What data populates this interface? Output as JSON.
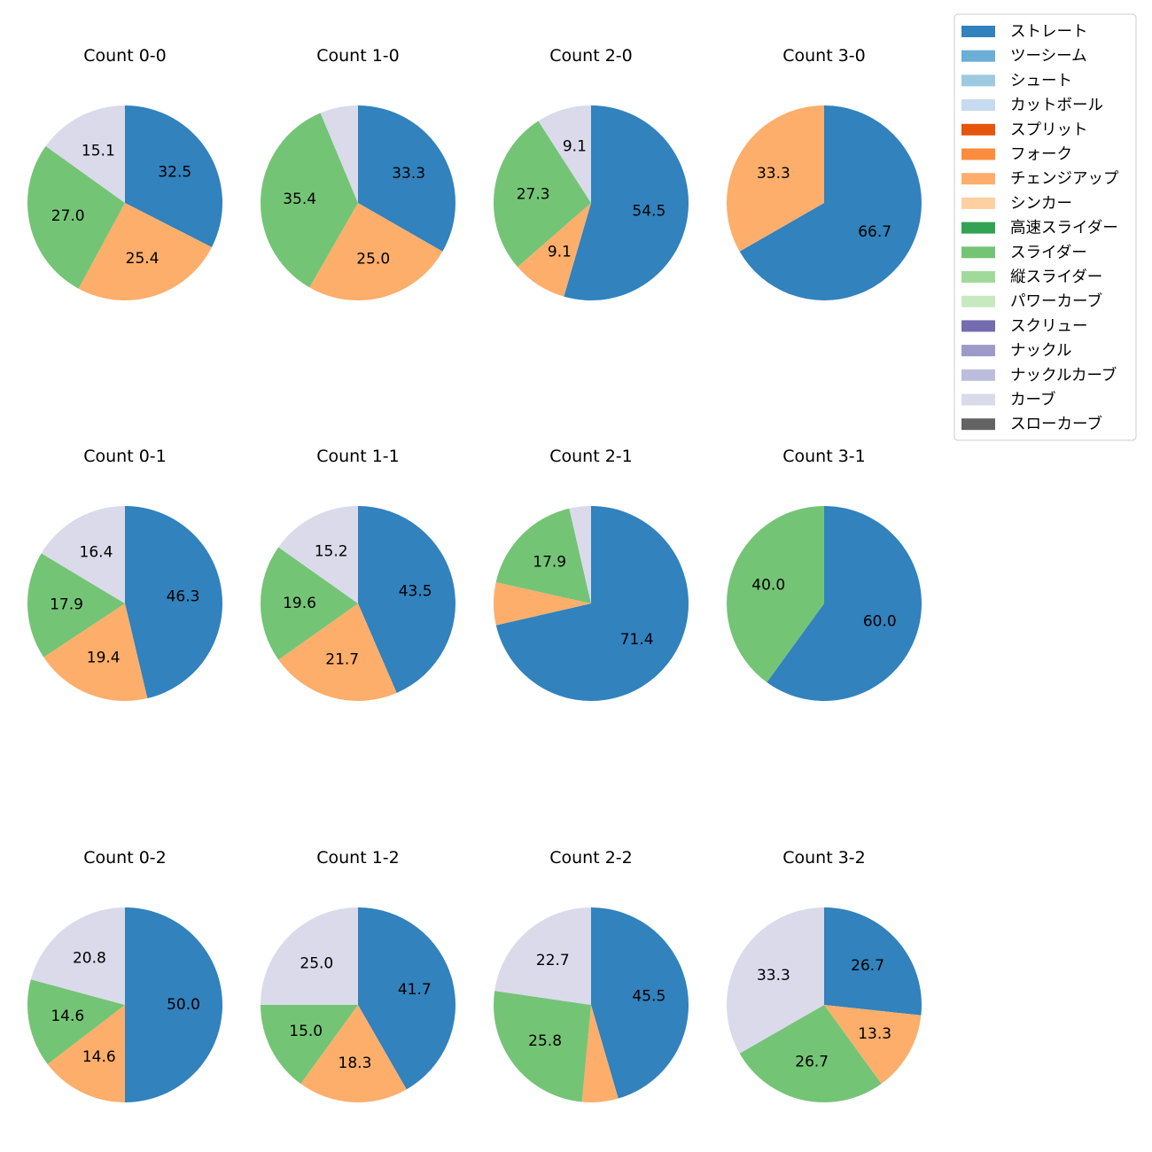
{
  "chart_data": {
    "type": "pie",
    "pitch_types": [
      {
        "name": "ストレート",
        "color": "#3182bd"
      },
      {
        "name": "ツーシーム",
        "color": "#6baed6"
      },
      {
        "name": "シュート",
        "color": "#9ecae1"
      },
      {
        "name": "カットボール",
        "color": "#c6dbef"
      },
      {
        "name": "スプリット",
        "color": "#e6550d"
      },
      {
        "name": "フォーク",
        "color": "#fd8d3c"
      },
      {
        "name": "チェンジアップ",
        "color": "#fdae6b"
      },
      {
        "name": "シンカー",
        "color": "#fdd0a2"
      },
      {
        "name": "高速スライダー",
        "color": "#31a354"
      },
      {
        "name": "スライダー",
        "color": "#74c476"
      },
      {
        "name": "縦スライダー",
        "color": "#a1d99b"
      },
      {
        "name": "パワーカーブ",
        "color": "#c7e9c0"
      },
      {
        "name": "スクリュー",
        "color": "#756bb1"
      },
      {
        "name": "ナックル",
        "color": "#9e9ac8"
      },
      {
        "name": "ナックルカーブ",
        "color": "#bcbddc"
      },
      {
        "name": "カーブ",
        "color": "#dadaeb"
      },
      {
        "name": "スローカーブ",
        "color": "#636363"
      }
    ],
    "legend_position": "top-right",
    "charts": [
      {
        "title": "Count 0-0",
        "slices": [
          {
            "type": "ストレート",
            "value": 32.5,
            "label": "32.5"
          },
          {
            "type": "チェンジアップ",
            "value": 25.4,
            "label": "25.4"
          },
          {
            "type": "スライダー",
            "value": 27.0,
            "label": "27.0"
          },
          {
            "type": "カーブ",
            "value": 15.1,
            "label": "15.1"
          }
        ]
      },
      {
        "title": "Count 1-0",
        "slices": [
          {
            "type": "ストレート",
            "value": 33.3,
            "label": "33.3"
          },
          {
            "type": "チェンジアップ",
            "value": 25.0,
            "label": "25.0"
          },
          {
            "type": "スライダー",
            "value": 35.4,
            "label": "35.4"
          },
          {
            "type": "カーブ",
            "value": 6.3,
            "label": ""
          }
        ]
      },
      {
        "title": "Count 2-0",
        "slices": [
          {
            "type": "ストレート",
            "value": 54.5,
            "label": "54.5"
          },
          {
            "type": "チェンジアップ",
            "value": 9.1,
            "label": "9.1"
          },
          {
            "type": "スライダー",
            "value": 27.3,
            "label": "27.3"
          },
          {
            "type": "カーブ",
            "value": 9.1,
            "label": "9.1"
          }
        ]
      },
      {
        "title": "Count 3-0",
        "slices": [
          {
            "type": "ストレート",
            "value": 66.7,
            "label": "66.7"
          },
          {
            "type": "チェンジアップ",
            "value": 33.3,
            "label": "33.3"
          }
        ]
      },
      {
        "title": "Count 0-1",
        "slices": [
          {
            "type": "ストレート",
            "value": 46.3,
            "label": "46.3"
          },
          {
            "type": "チェンジアップ",
            "value": 19.4,
            "label": "19.4"
          },
          {
            "type": "スライダー",
            "value": 17.9,
            "label": "17.9"
          },
          {
            "type": "カーブ",
            "value": 16.4,
            "label": "16.4"
          }
        ]
      },
      {
        "title": "Count 1-1",
        "slices": [
          {
            "type": "ストレート",
            "value": 43.5,
            "label": "43.5"
          },
          {
            "type": "チェンジアップ",
            "value": 21.7,
            "label": "21.7"
          },
          {
            "type": "スライダー",
            "value": 19.6,
            "label": "19.6"
          },
          {
            "type": "カーブ",
            "value": 15.2,
            "label": "15.2"
          }
        ]
      },
      {
        "title": "Count 2-1",
        "slices": [
          {
            "type": "ストレート",
            "value": 71.4,
            "label": "71.4"
          },
          {
            "type": "チェンジアップ",
            "value": 7.1,
            "label": ""
          },
          {
            "type": "スライダー",
            "value": 17.9,
            "label": "17.9"
          },
          {
            "type": "カーブ",
            "value": 3.6,
            "label": ""
          }
        ]
      },
      {
        "title": "Count 3-1",
        "slices": [
          {
            "type": "ストレート",
            "value": 60.0,
            "label": "60.0"
          },
          {
            "type": "スライダー",
            "value": 40.0,
            "label": "40.0"
          }
        ]
      },
      {
        "title": "Count 0-2",
        "slices": [
          {
            "type": "ストレート",
            "value": 50.0,
            "label": "50.0"
          },
          {
            "type": "チェンジアップ",
            "value": 14.6,
            "label": "14.6"
          },
          {
            "type": "スライダー",
            "value": 14.6,
            "label": "14.6"
          },
          {
            "type": "カーブ",
            "value": 20.8,
            "label": "20.8"
          }
        ]
      },
      {
        "title": "Count 1-2",
        "slices": [
          {
            "type": "ストレート",
            "value": 41.7,
            "label": "41.7"
          },
          {
            "type": "チェンジアップ",
            "value": 18.3,
            "label": "18.3"
          },
          {
            "type": "スライダー",
            "value": 15.0,
            "label": "15.0"
          },
          {
            "type": "カーブ",
            "value": 25.0,
            "label": "25.0"
          }
        ]
      },
      {
        "title": "Count 2-2",
        "slices": [
          {
            "type": "ストレート",
            "value": 45.5,
            "label": "45.5"
          },
          {
            "type": "チェンジアップ",
            "value": 6.0,
            "label": ""
          },
          {
            "type": "スライダー",
            "value": 25.8,
            "label": "25.8"
          },
          {
            "type": "カーブ",
            "value": 22.7,
            "label": "22.7"
          }
        ]
      },
      {
        "title": "Count 3-2",
        "slices": [
          {
            "type": "ストレート",
            "value": 26.7,
            "label": "26.7"
          },
          {
            "type": "チェンジアップ",
            "value": 13.3,
            "label": "13.3"
          },
          {
            "type": "スライダー",
            "value": 26.7,
            "label": "26.7"
          },
          {
            "type": "カーブ",
            "value": 33.3,
            "label": "33.3"
          }
        ]
      }
    ]
  }
}
